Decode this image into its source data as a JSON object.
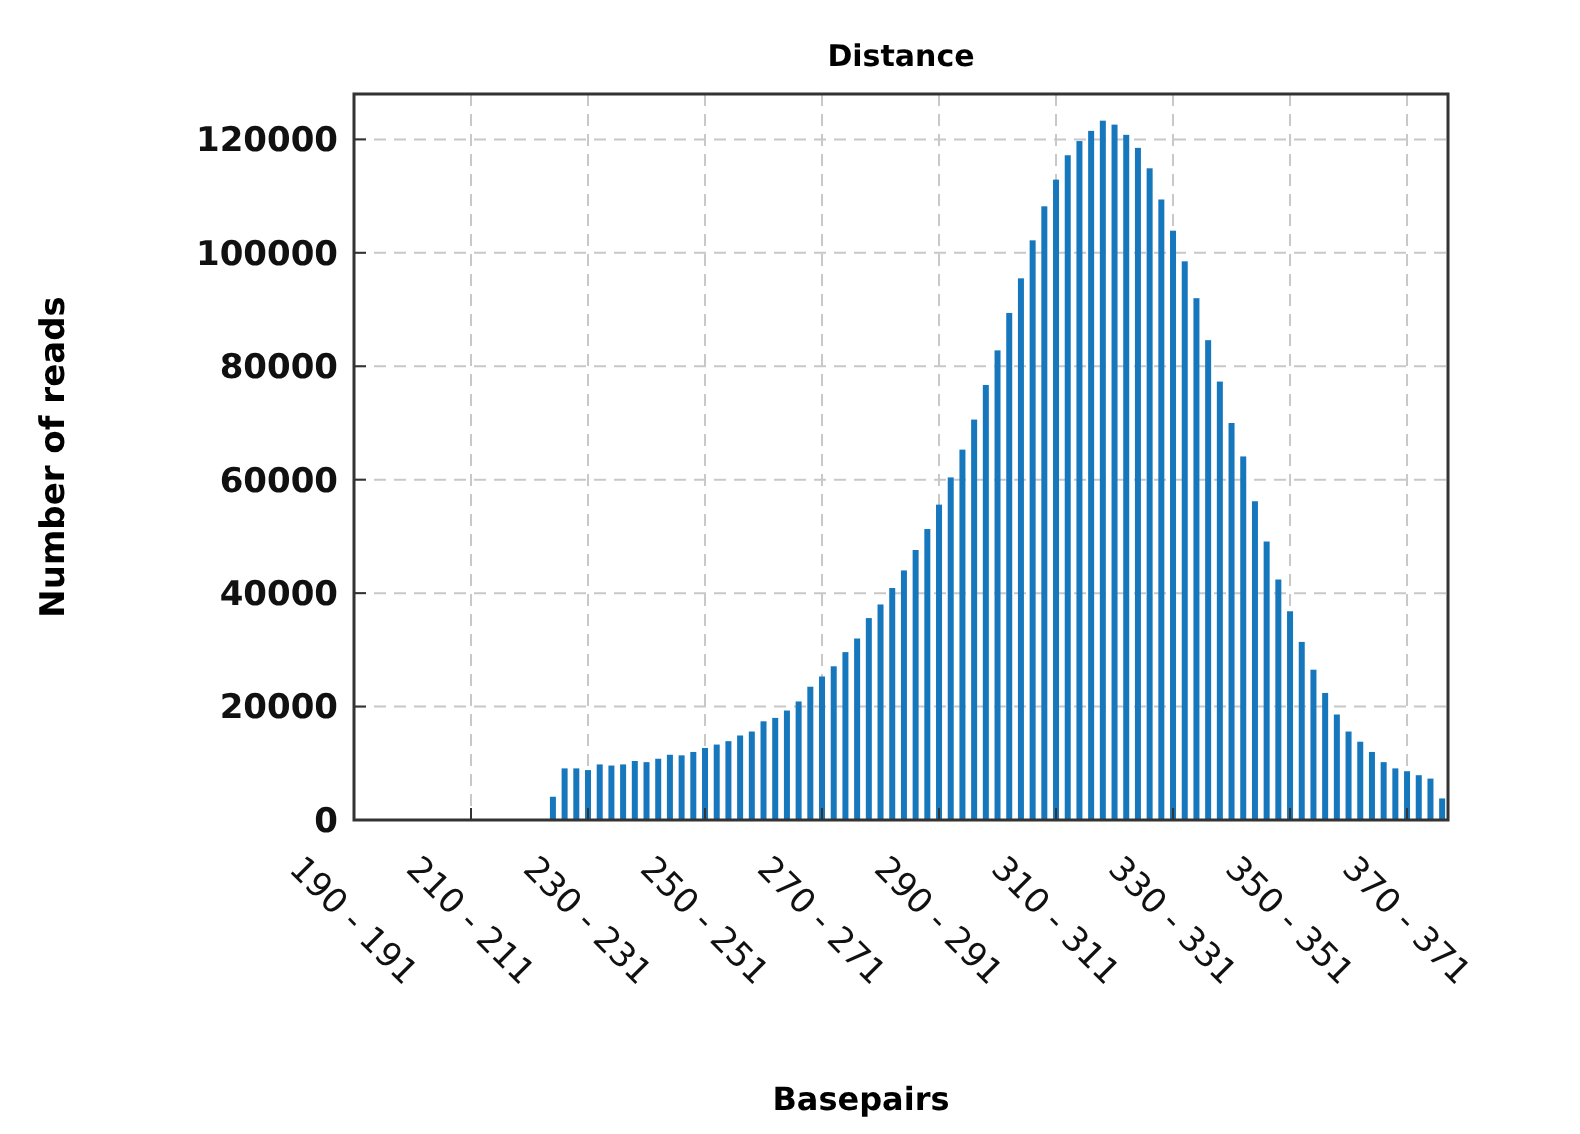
{
  "chart_data": {
    "type": "bar",
    "title": "Distance",
    "xlabel": "Basepairs",
    "ylabel": "Number of reads",
    "categories": [
      "190 - 191",
      null,
      null,
      null,
      null,
      null,
      null,
      null,
      null,
      null,
      "210 - 211",
      null,
      null,
      null,
      null,
      null,
      null,
      null,
      null,
      null,
      "230 - 231",
      null,
      null,
      null,
      null,
      null,
      null,
      null,
      null,
      null,
      "250 - 251",
      null,
      null,
      null,
      null,
      null,
      null,
      null,
      null,
      null,
      "270 - 271",
      null,
      null,
      null,
      null,
      null,
      null,
      null,
      null,
      null,
      "290 - 291",
      null,
      null,
      null,
      null,
      null,
      null,
      null,
      null,
      null,
      "310 - 311",
      null,
      null,
      null,
      null,
      null,
      null,
      null,
      null,
      null,
      "330 - 331",
      null,
      null,
      null,
      null,
      null,
      null,
      null,
      null,
      null,
      "350 - 351",
      null,
      null,
      null,
      null,
      null,
      null,
      null,
      null,
      null,
      "370 - 371",
      null,
      null,
      null
    ],
    "values": [
      0,
      0,
      0,
      0,
      0,
      0,
      0,
      0,
      0,
      0,
      0,
      0,
      0,
      0,
      0,
      0,
      0,
      4100,
      9100,
      9100,
      8800,
      9800,
      9600,
      9800,
      10400,
      10200,
      10800,
      11500,
      11400,
      12000,
      12700,
      13300,
      13900,
      14900,
      15600,
      17400,
      18000,
      19300,
      20900,
      23500,
      25300,
      27100,
      29600,
      32000,
      35600,
      38000,
      40900,
      44000,
      47600,
      51300,
      55600,
      60400,
      65300,
      70600,
      76700,
      82800,
      89400,
      95500,
      102200,
      108200,
      112900,
      117200,
      119700,
      121500,
      123300,
      122600,
      120800,
      118500,
      114900,
      109400,
      103900,
      98500,
      92000,
      84600,
      77300,
      70000,
      64100,
      56200,
      49100,
      42400,
      36800,
      31400,
      26500,
      22400,
      18600,
      15600,
      13800,
      12000,
      10200,
      9100,
      8600,
      7900,
      7300,
      3800
    ],
    "color": "#1677bd",
    "ylim": [
      0,
      128000
    ],
    "yticks": [
      0,
      20000,
      40000,
      60000,
      80000,
      100000,
      120000
    ],
    "grid": true
  }
}
